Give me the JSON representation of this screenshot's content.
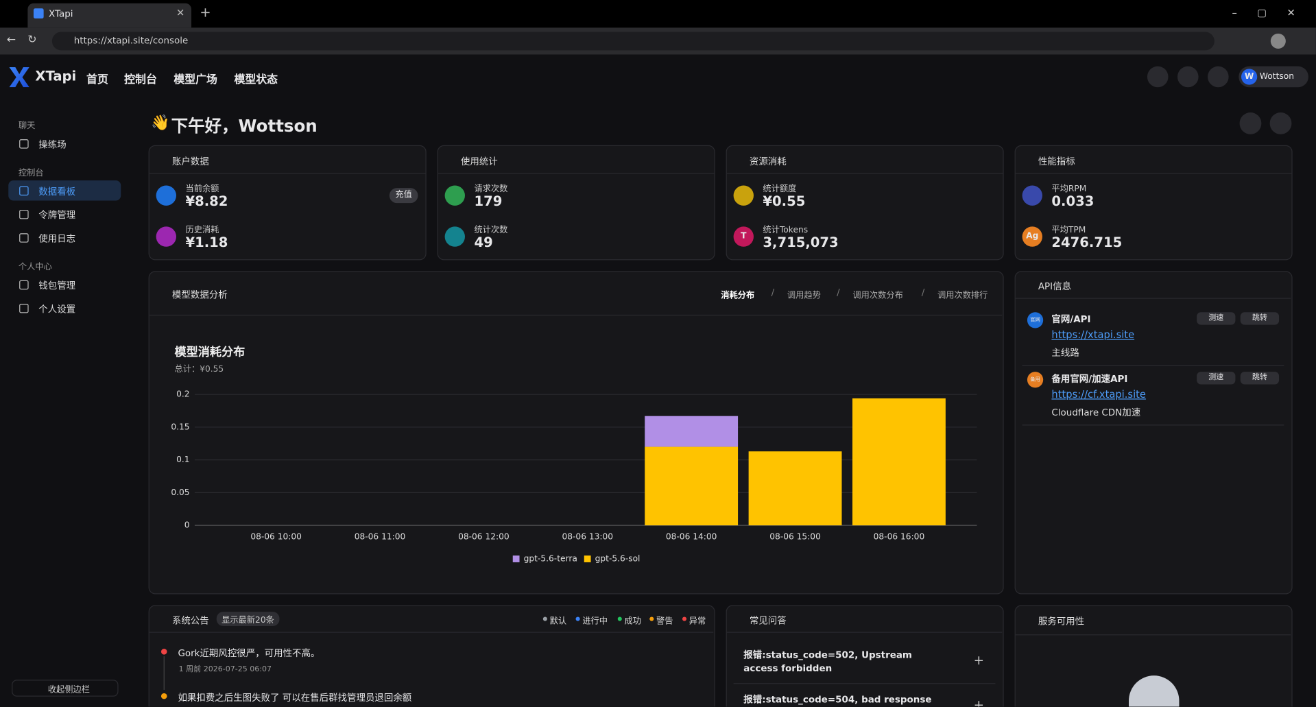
{
  "browser": {
    "tab_title": "XTapi",
    "url": "https://xtapi.site/console"
  },
  "nav": {
    "brand": "XTapi",
    "links": [
      "首页",
      "控制台",
      "模型广场",
      "模型状态"
    ],
    "avatar": "W",
    "user": "Wottson"
  },
  "sidebar": {
    "groups": [
      {
        "title": "聊天",
        "items": [
          "操练场"
        ]
      },
      {
        "title": "控制台",
        "items": [
          "数据看板",
          "令牌管理",
          "使用日志"
        ]
      },
      {
        "title": "个人中心",
        "items": [
          "钱包管理",
          "个人设置"
        ]
      }
    ],
    "collapse": "收起侧边栏"
  },
  "greeting": {
    "icon": "👋",
    "text": "下午好，Wottson"
  },
  "stat_cards": [
    {
      "title": "账户数据",
      "button": "充值",
      "items": [
        {
          "label": "当前余额",
          "value": "¥8.82"
        },
        {
          "label": "历史消耗",
          "value": "¥1.18"
        }
      ]
    },
    {
      "title": "使用统计",
      "items": [
        {
          "label": "请求次数",
          "value": "179"
        },
        {
          "label": "统计次数",
          "value": "49"
        }
      ]
    },
    {
      "title": "资源消耗",
      "items": [
        {
          "label": "统计额度",
          "value": "¥0.55"
        },
        {
          "label": "统计Tokens",
          "value": "3,715,073",
          "icon_text": "T"
        }
      ]
    },
    {
      "title": "性能指标",
      "items": [
        {
          "label": "平均RPM",
          "value": "0.033"
        },
        {
          "label": "平均TPM",
          "value": "2476.715",
          "icon_text": "Ag"
        }
      ]
    }
  ],
  "analysis": {
    "title": "模型数据分析",
    "tabs": [
      "消耗分布",
      "调用趋势",
      "调用次数分布",
      "调用次数排行"
    ]
  },
  "chart_data": {
    "type": "bar",
    "stacked": true,
    "title": "模型消耗分布",
    "subtitle": "总计：¥0.55",
    "categories": [
      "08-06 10:00",
      "08-06 11:00",
      "08-06 12:00",
      "08-06 13:00",
      "08-06 14:00",
      "08-06 15:00",
      "08-06 16:00"
    ],
    "series": [
      {
        "name": "gpt-5.6-terra",
        "color": "#b18fe6",
        "values": [
          0,
          0,
          0,
          0,
          0.047,
          0,
          0
        ]
      },
      {
        "name": "gpt-5.6-sol",
        "color": "#ffc300",
        "values": [
          0,
          0,
          0,
          0,
          0.12,
          0.113,
          0.194
        ]
      }
    ],
    "ylim": [
      0,
      0.2
    ],
    "yticks": [
      0,
      0.05,
      0.1,
      0.15,
      0.2
    ],
    "grid": true
  },
  "api_info": {
    "title": "API信息",
    "test": "测速",
    "jump": "跳转",
    "entries": [
      {
        "badge": "官网",
        "name": "官网/API",
        "url": "https://xtapi.site",
        "desc": "主线路"
      },
      {
        "badge": "备用",
        "name": "备用官网/加速API",
        "url": "https://cf.xtapi.site",
        "desc": "Cloudflare CDN加速"
      }
    ]
  },
  "announcements": {
    "title": "系统公告",
    "badge": "显示最新20条",
    "legend": [
      {
        "name": "默认",
        "color": "#9aa0a6"
      },
      {
        "name": "进行中",
        "color": "#3b82f6"
      },
      {
        "name": "成功",
        "color": "#22c55e"
      },
      {
        "name": "警告",
        "color": "#f59e0b"
      },
      {
        "name": "异常",
        "color": "#ef4444"
      }
    ],
    "items": [
      {
        "text": "Gork近期风控很严，可用性不高。",
        "time": "1 周前 2026-07-25 06:07"
      },
      {
        "text": "如果扣费之后生图失败了 可以在售后群找管理员退回余额"
      }
    ]
  },
  "faq": {
    "title": "常见问答",
    "items": [
      "报错:status_code=502, Upstream access forbidden",
      "报错:status_code=504, bad response"
    ]
  },
  "service": {
    "title": "服务可用性"
  }
}
